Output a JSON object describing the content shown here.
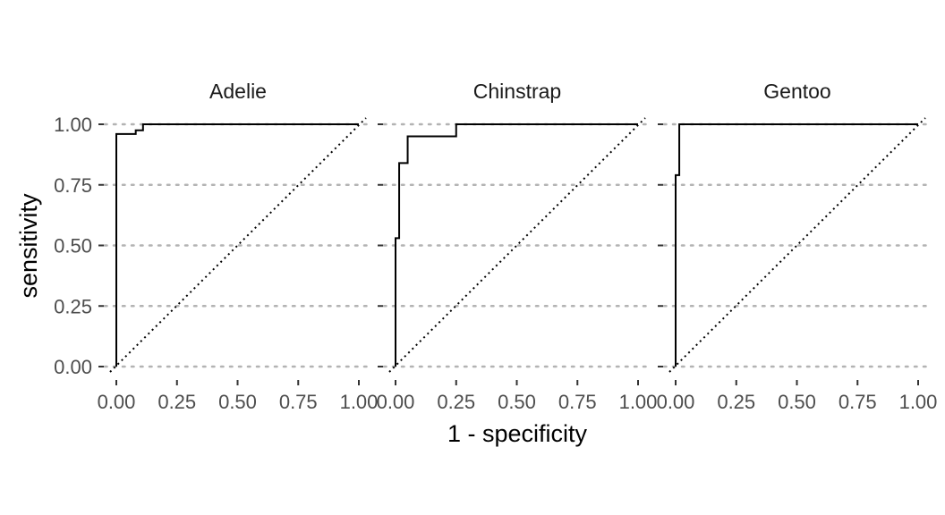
{
  "chart_data": {
    "type": "line",
    "title": "",
    "xlabel": "1 - specificity",
    "ylabel": "sensitivity",
    "xlim": [
      0,
      1
    ],
    "ylim": [
      0,
      1
    ],
    "x_ticks": [
      0,
      0.25,
      0.5,
      0.75,
      1
    ],
    "x_tick_labels": [
      "0.00",
      "0.25",
      "0.50",
      "0.75",
      "1.00"
    ],
    "y_ticks": [
      0,
      0.25,
      0.5,
      0.75,
      1
    ],
    "y_tick_labels": [
      "0.00",
      "0.25",
      "0.50",
      "0.75",
      "1.00"
    ],
    "grid": "horizontal-dotted",
    "reference_line": "diagonal-dotted",
    "colors": {
      "curve": "#000000",
      "grid": "#b3b3b3",
      "tick_text": "#4d4d4d",
      "strip_text": "#1a1a1a"
    },
    "facets": [
      {
        "label": "Adelie",
        "points": [
          [
            0,
            0
          ],
          [
            0,
            0.96
          ],
          [
            0.08,
            0.96
          ],
          [
            0.08,
            0.975
          ],
          [
            0.11,
            0.975
          ],
          [
            0.11,
            1
          ],
          [
            1,
            1
          ]
        ]
      },
      {
        "label": "Chinstrap",
        "points": [
          [
            0,
            0
          ],
          [
            0,
            0.53
          ],
          [
            0.015,
            0.53
          ],
          [
            0.015,
            0.84
          ],
          [
            0.05,
            0.84
          ],
          [
            0.05,
            0.95
          ],
          [
            0.25,
            0.95
          ],
          [
            0.25,
            1
          ],
          [
            1,
            1
          ]
        ]
      },
      {
        "label": "Gentoo",
        "points": [
          [
            0,
            0
          ],
          [
            0,
            0.79
          ],
          [
            0.015,
            0.79
          ],
          [
            0.015,
            1
          ],
          [
            1,
            1
          ]
        ]
      }
    ]
  }
}
